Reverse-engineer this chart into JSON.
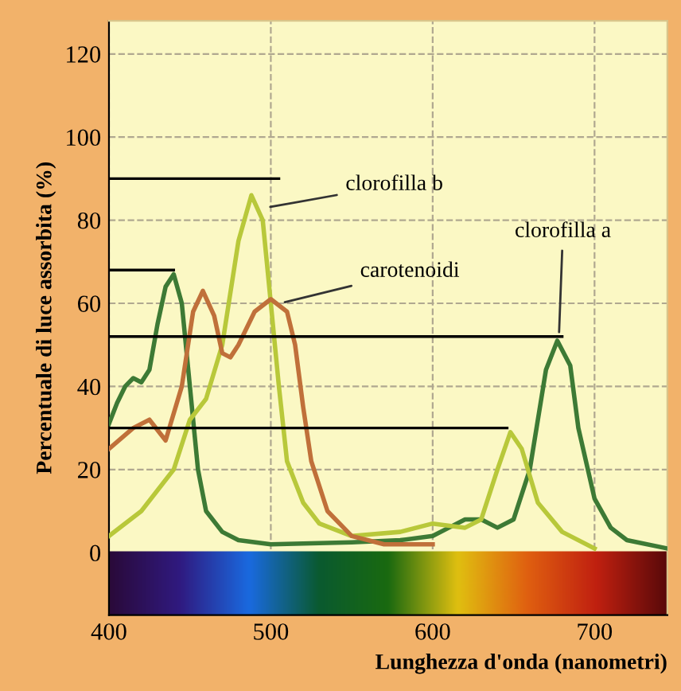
{
  "chart_data": {
    "type": "line",
    "xlabel": "Lunghezza d'onda (nanometri)",
    "ylabel": "Percentuale di luce assorbita (%)",
    "xlim": [
      400,
      745
    ],
    "ylim": [
      -15,
      128
    ],
    "xticks": [
      400,
      500,
      600,
      700
    ],
    "yticks": [
      0,
      20,
      40,
      60,
      80,
      100,
      120
    ],
    "grid": true,
    "legend": false,
    "marker": "none",
    "line_style": "solid",
    "series": [
      {
        "color": "#3d7a35",
        "x": [
          400,
          405,
          410,
          415,
          420,
          425,
          430,
          435,
          440,
          445,
          450,
          455,
          460,
          470,
          480,
          500,
          550,
          580,
          600,
          610,
          620,
          630,
          640,
          650,
          660,
          670,
          677,
          685,
          690,
          700,
          710,
          720,
          745
        ],
        "values": [
          31,
          36,
          40,
          42,
          41,
          44,
          55,
          64,
          67,
          60,
          40,
          20,
          10,
          5,
          3,
          2,
          2.5,
          3,
          4,
          6,
          8,
          8,
          6,
          8,
          20,
          44,
          51,
          45,
          30,
          13,
          6,
          3,
          1
        ]
      },
      {
        "color": "#b8c83a",
        "x": [
          400,
          420,
          440,
          450,
          460,
          470,
          480,
          488,
          495,
          500,
          505,
          510,
          520,
          530,
          550,
          580,
          600,
          620,
          630,
          640,
          648,
          655,
          665,
          680,
          700
        ],
        "values": [
          4,
          10,
          20,
          32,
          37,
          50,
          75,
          86,
          80,
          60,
          40,
          22,
          12,
          7,
          4,
          5,
          7,
          6,
          8,
          20,
          29,
          25,
          12,
          5,
          1
        ]
      },
      {
        "color": "#c0703a",
        "x": [
          400,
          415,
          425,
          435,
          445,
          452,
          458,
          465,
          470,
          475,
          480,
          490,
          500,
          510,
          515,
          520,
          525,
          535,
          550,
          570,
          600
        ],
        "values": [
          25,
          30,
          32,
          27,
          40,
          58,
          63,
          57,
          48,
          47,
          50,
          58,
          61,
          58,
          50,
          35,
          22,
          10,
          4,
          2,
          2
        ]
      },
      {
        "color": "#000000",
        "x": [
          400,
          505
        ],
        "values": [
          90,
          90
        ]
      },
      {
        "color": "#000000",
        "x": [
          400,
          440
        ],
        "values": [
          68,
          68
        ]
      },
      {
        "color": "#000000",
        "x": [
          400,
          680
        ],
        "values": [
          52,
          52
        ]
      },
      {
        "color": "#000000",
        "x": [
          400,
          646
        ],
        "values": [
          30,
          30
        ]
      }
    ],
    "annotations": [
      {
        "text": "clorofilla b",
        "x": 497,
        "y": 83
      },
      {
        "text": "carotenoidi",
        "x": 506,
        "y": 60
      },
      {
        "text": "clorofilla a",
        "x": 678,
        "y": 52
      }
    ]
  }
}
